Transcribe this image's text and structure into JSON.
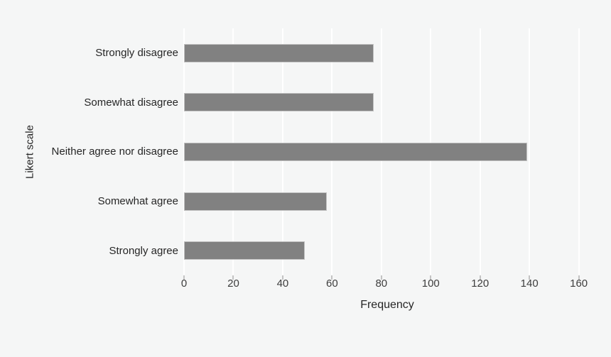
{
  "chart_data": {
    "type": "bar",
    "orientation": "horizontal",
    "title": "",
    "xlabel": "Frequency",
    "ylabel": "Likert scale",
    "categories": [
      "Strongly disagree",
      "Somewhat disagree",
      "Neither agree nor disagree",
      "Somewhat agree",
      "Strongly agree"
    ],
    "values": [
      77,
      77,
      139,
      58,
      49
    ],
    "xticks": [
      0,
      20,
      40,
      60,
      80,
      100,
      120,
      140,
      160
    ],
    "xlim": [
      0,
      165
    ],
    "grid": "vertical major gridlines only",
    "legend": "none",
    "colors": {
      "bar_fill": "#818181",
      "bar_edge": "#c2c2c2",
      "background": "#f5f6f6",
      "gridline": "#ffffff",
      "tick_mark": "#c4c4c4",
      "tick_text": "#3d3d3d",
      "label_text": "#262626"
    }
  }
}
